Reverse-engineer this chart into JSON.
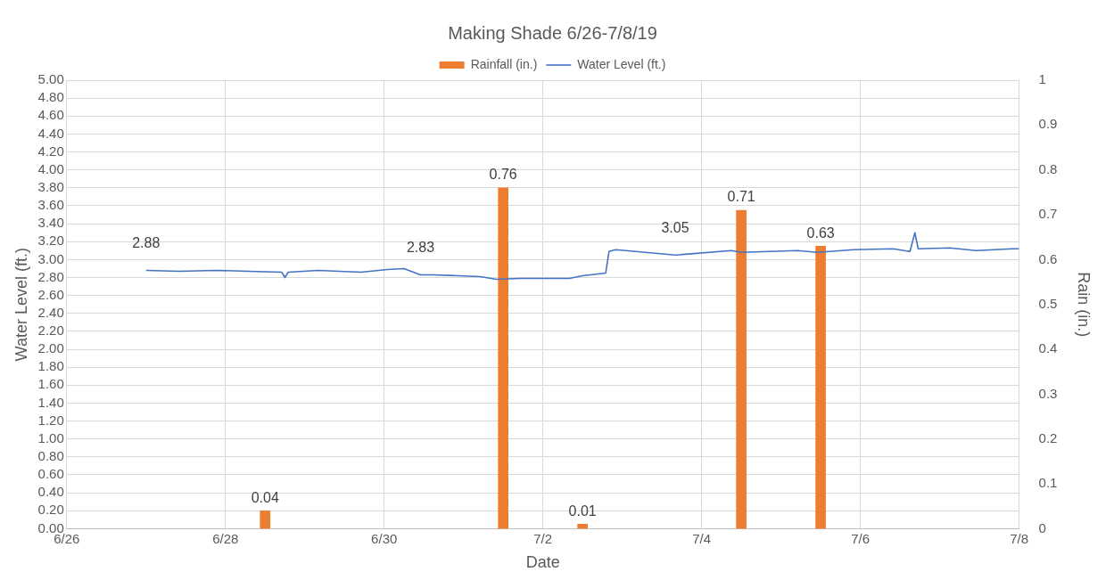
{
  "chart_data": {
    "type": "line",
    "title": "Making Shade 6/26-7/8/19",
    "xlabel": "Date",
    "ylabel": "Water Level (ft.)",
    "y2label": "Rain (in.)",
    "xlim": [
      "--06-26",
      "--07-08"
    ],
    "xticks": [
      {
        "value": "--06-26",
        "label": "6/26"
      },
      {
        "value": "--06-28",
        "label": "6/28"
      },
      {
        "value": "--06-30",
        "label": "6/30"
      },
      {
        "value": "--07-02",
        "label": "7/2"
      },
      {
        "value": "--07-04",
        "label": "7/4"
      },
      {
        "value": "--07-06",
        "label": "7/6"
      },
      {
        "value": "--07-08",
        "label": "7/8"
      }
    ],
    "ylim": [
      0,
      5
    ],
    "yticks": [
      {
        "value": 0,
        "label": "0.00"
      },
      {
        "value": 0.2,
        "label": "0.20"
      },
      {
        "value": 0.4,
        "label": "0.40"
      },
      {
        "value": 0.6,
        "label": "0.60"
      },
      {
        "value": 0.8,
        "label": "0.80"
      },
      {
        "value": 1,
        "label": "1.00"
      },
      {
        "value": 1.2,
        "label": "1.20"
      },
      {
        "value": 1.4,
        "label": "1.40"
      },
      {
        "value": 1.6,
        "label": "1.60"
      },
      {
        "value": 1.8,
        "label": "1.80"
      },
      {
        "value": 2,
        "label": "2.00"
      },
      {
        "value": 2.2,
        "label": "2.20"
      },
      {
        "value": 2.4,
        "label": "2.40"
      },
      {
        "value": 2.6,
        "label": "2.60"
      },
      {
        "value": 2.8,
        "label": "2.80"
      },
      {
        "value": 3,
        "label": "3.00"
      },
      {
        "value": 3.2,
        "label": "3.20"
      },
      {
        "value": 3.4,
        "label": "3.40"
      },
      {
        "value": 3.6,
        "label": "3.60"
      },
      {
        "value": 3.8,
        "label": "3.80"
      },
      {
        "value": 4,
        "label": "4.00"
      },
      {
        "value": 4.2,
        "label": "4.20"
      },
      {
        "value": 4.4,
        "label": "4.40"
      },
      {
        "value": 4.6,
        "label": "4.60"
      },
      {
        "value": 4.8,
        "label": "4.80"
      },
      {
        "value": 5,
        "label": "5.00"
      }
    ],
    "y2lim": [
      0,
      1
    ],
    "y2ticks": [
      0,
      0.1,
      0.2,
      0.3,
      0.4,
      0.5,
      0.6,
      0.7,
      0.8,
      0.9,
      1
    ],
    "grid": true,
    "legend": "top",
    "marker": "none",
    "line_style": "solid",
    "series": [
      {
        "name": "Rainfall (in.)",
        "type": "bar",
        "axis": "y2",
        "color": "#ed7d31",
        "x": [
          "--06-28T12:00",
          "--07-01T12:00",
          "--07-02T12:00",
          "--07-04T12:00",
          "--07-05T12:00"
        ],
        "values": [
          0.04,
          0.76,
          0.01,
          0.71,
          0.63
        ],
        "value_labels": [
          "0.04",
          "0.76",
          "0.01",
          "0.71",
          "0.63"
        ]
      },
      {
        "name": "Water Level (ft.)",
        "color": "#4472c4",
        "x": [
          "--06-27T00:00",
          "--06-27T10:00",
          "--06-27T21:00",
          "--06-28T07:00",
          "--06-28T17:00",
          "--06-28T18:00",
          "--06-28T19:00",
          "--06-29T04:00",
          "--06-29T17:00",
          "--06-30T01:00",
          "--06-30T06:00",
          "--06-30T11:00",
          "--06-30T15:00",
          "--07-01T05:00",
          "--07-01T10:00",
          "--07-01T17:00",
          "--07-01T22:00",
          "--07-02T08:00",
          "--07-02T12:00",
          "--07-02T19:00",
          "--07-02T20:00",
          "--07-02T22:00",
          "--07-03T16:00",
          "--07-04T09:00",
          "--07-04T12:00",
          "--07-05T05:00",
          "--07-05T11:00",
          "--07-05T22:00",
          "--07-06T10:00",
          "--07-06T15:00",
          "--07-06T16:30",
          "--07-06T17:30",
          "--07-07T03:00",
          "--07-07T11:00",
          "--07-07T22:00",
          "--07-08T00:00"
        ],
        "values": [
          2.88,
          2.87,
          2.88,
          2.87,
          2.86,
          2.8,
          2.86,
          2.88,
          2.86,
          2.89,
          2.9,
          2.83,
          2.83,
          2.81,
          2.78,
          2.79,
          2.79,
          2.79,
          2.82,
          2.85,
          3.09,
          3.11,
          3.05,
          3.1,
          3.08,
          3.1,
          3.08,
          3.11,
          3.12,
          3.09,
          3.3,
          3.12,
          3.13,
          3.1,
          3.12,
          3.12
        ],
        "value_labels": [
          "2.88",
          null,
          null,
          null,
          null,
          null,
          null,
          null,
          null,
          null,
          null,
          "2.83",
          null,
          null,
          null,
          null,
          null,
          null,
          null,
          null,
          null,
          null,
          "3.05",
          null,
          null,
          null,
          null,
          null,
          null,
          null,
          null,
          null,
          null,
          null,
          null,
          null
        ]
      }
    ]
  }
}
